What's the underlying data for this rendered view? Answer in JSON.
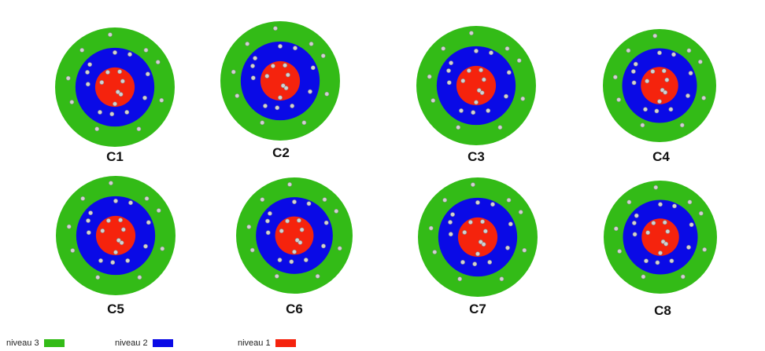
{
  "colors": {
    "level3": "#33bb17",
    "level2": "#0a0ae6",
    "level1": "#f5230d",
    "dot": "#d2d2d2",
    "dot_stroke": "#8a8a8a"
  },
  "charts": [
    {
      "label": "C1"
    },
    {
      "label": "C2"
    },
    {
      "label": "C3"
    },
    {
      "label": "C4"
    },
    {
      "label": "C5"
    },
    {
      "label": "C6"
    },
    {
      "label": "C7"
    },
    {
      "label": "C8"
    }
  ],
  "legend": [
    {
      "label": "niveau 3",
      "color": "#33bb17"
    },
    {
      "label": "niveau 2",
      "color": "#0a0ae6"
    },
    {
      "label": "niveau 1",
      "color": "#f5230d"
    }
  ]
}
